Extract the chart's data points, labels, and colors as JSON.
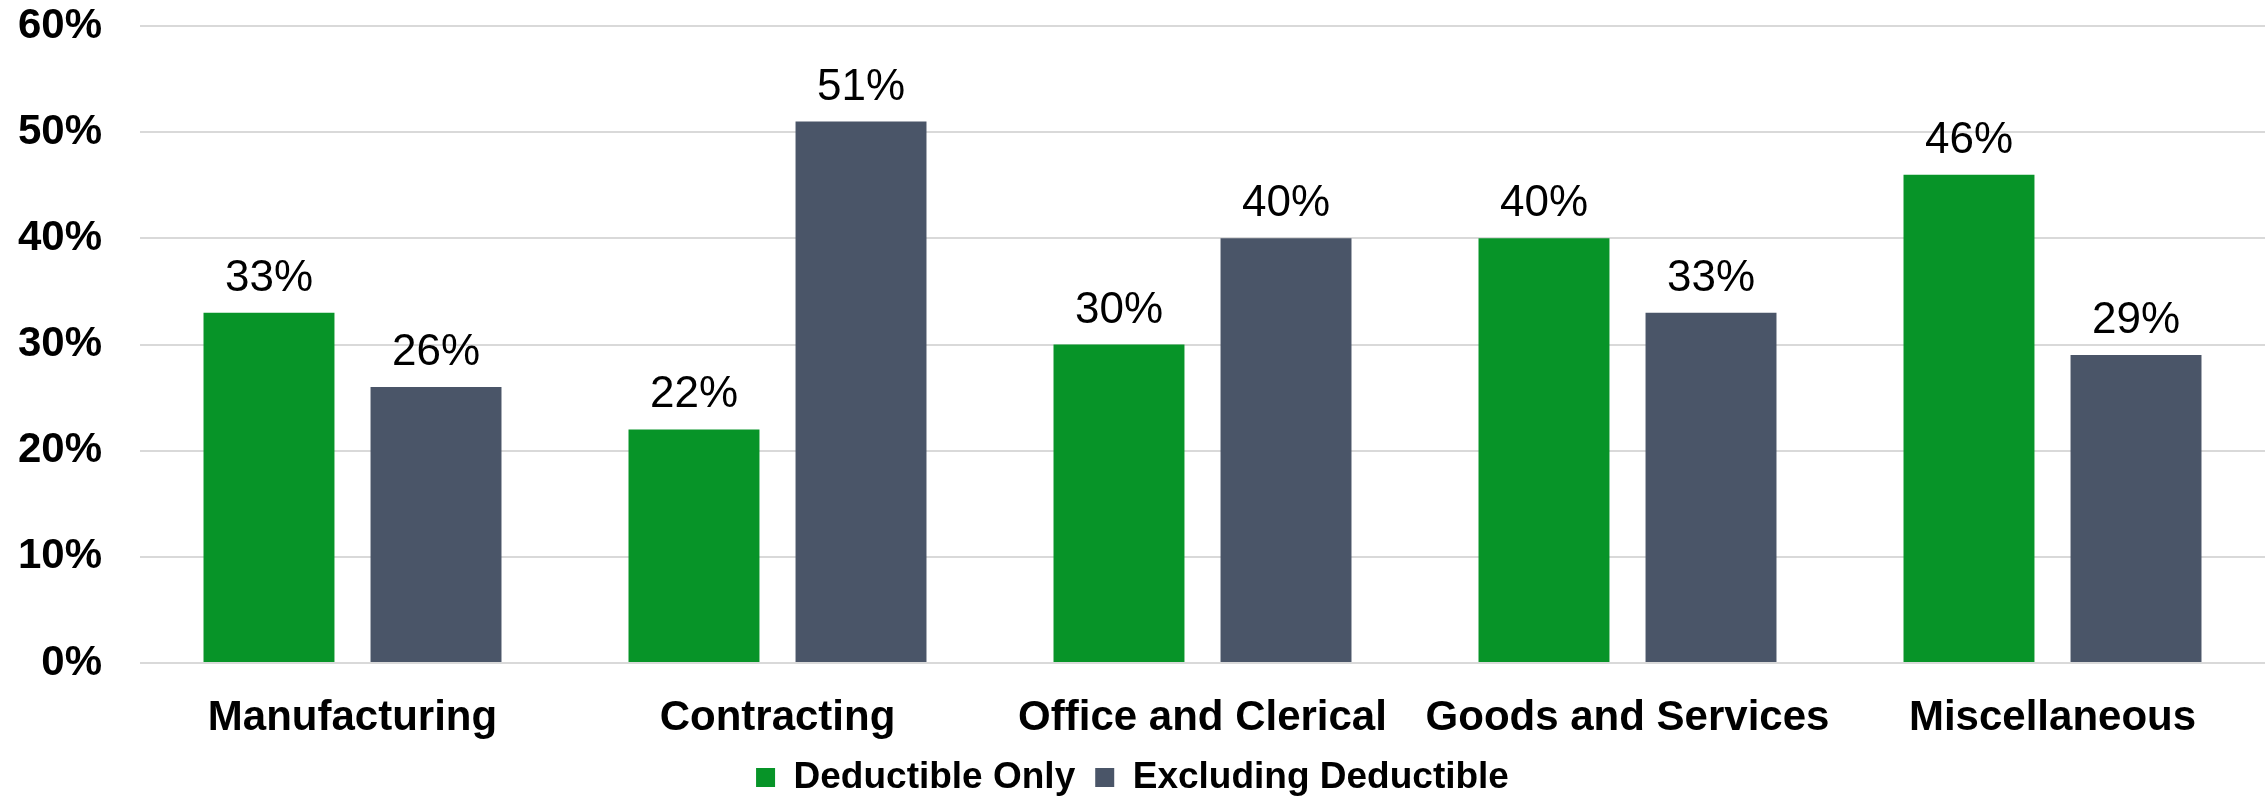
{
  "chart_data": {
    "type": "bar",
    "categories": [
      "Manufacturing",
      "Contracting",
      "Office and Clerical",
      "Goods and Services",
      "Miscellaneous"
    ],
    "series": [
      {
        "name": "Deductible Only",
        "color": "#079428",
        "values": [
          33,
          22,
          30,
          40,
          46
        ],
        "value_labels": [
          "33%",
          "22%",
          "30%",
          "40%",
          "46%"
        ]
      },
      {
        "name": "Excluding Deductible",
        "color": "#4a5568",
        "values": [
          26,
          51,
          40,
          33,
          29
        ],
        "value_labels": [
          "26%",
          "51%",
          "40%",
          "33%",
          "29%"
        ]
      }
    ],
    "ylim": [
      0,
      60
    ],
    "yticks": [
      {
        "value": 0,
        "label": "0%"
      },
      {
        "value": 10,
        "label": "10%"
      },
      {
        "value": 20,
        "label": "20%"
      },
      {
        "value": 30,
        "label": "30%"
      },
      {
        "value": 40,
        "label": "40%"
      },
      {
        "value": 50,
        "label": "50%"
      },
      {
        "value": 60,
        "label": "60%"
      }
    ],
    "grid": "y",
    "legend": "bottom"
  }
}
